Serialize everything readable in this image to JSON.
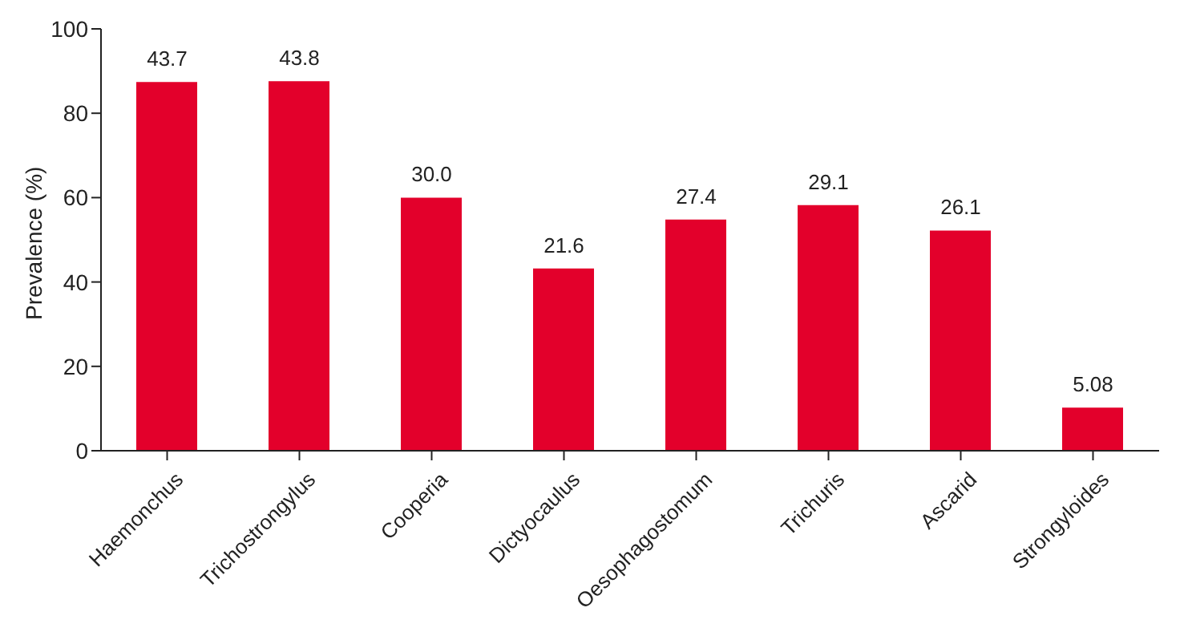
{
  "chart_data": {
    "type": "bar",
    "ylabel": "Prevalence (%)",
    "categories": [
      "Haemonchus",
      "Trichostrongylus",
      "Cooperia",
      "Dictyocaulus",
      "Oesophagostomum",
      "Trichuris",
      "Ascarid",
      "Strongyloides"
    ],
    "values": [
      87.4,
      87.6,
      60,
      43.2,
      54.8,
      58.2,
      52.2,
      10.2
    ],
    "annotations": [
      {
        "text": "43.7",
        "x": "Haemonchus",
        "y": 87.4
      },
      {
        "text": "43.8",
        "x": "Trichostrongylus",
        "y": 87.6
      },
      {
        "text": "30.0",
        "x": "Cooperia",
        "y": 60
      },
      {
        "text": "21.6",
        "x": "Dictyocaulus",
        "y": 43.2
      },
      {
        "text": "27.4",
        "x": "Oesophagostomum",
        "y": 54.8
      },
      {
        "text": "29.1",
        "x": "Trichuris",
        "y": 58.2
      },
      {
        "text": "26.1",
        "x": "Ascarid",
        "y": 52.2
      },
      {
        "text": "5.08",
        "x": "Strongyloides",
        "y": 10.2
      }
    ],
    "color": "#e3002b",
    "ylim": [
      0,
      100
    ],
    "yticks": [
      0,
      20,
      40,
      60,
      80,
      100
    ],
    "grid": false,
    "legend": false
  }
}
